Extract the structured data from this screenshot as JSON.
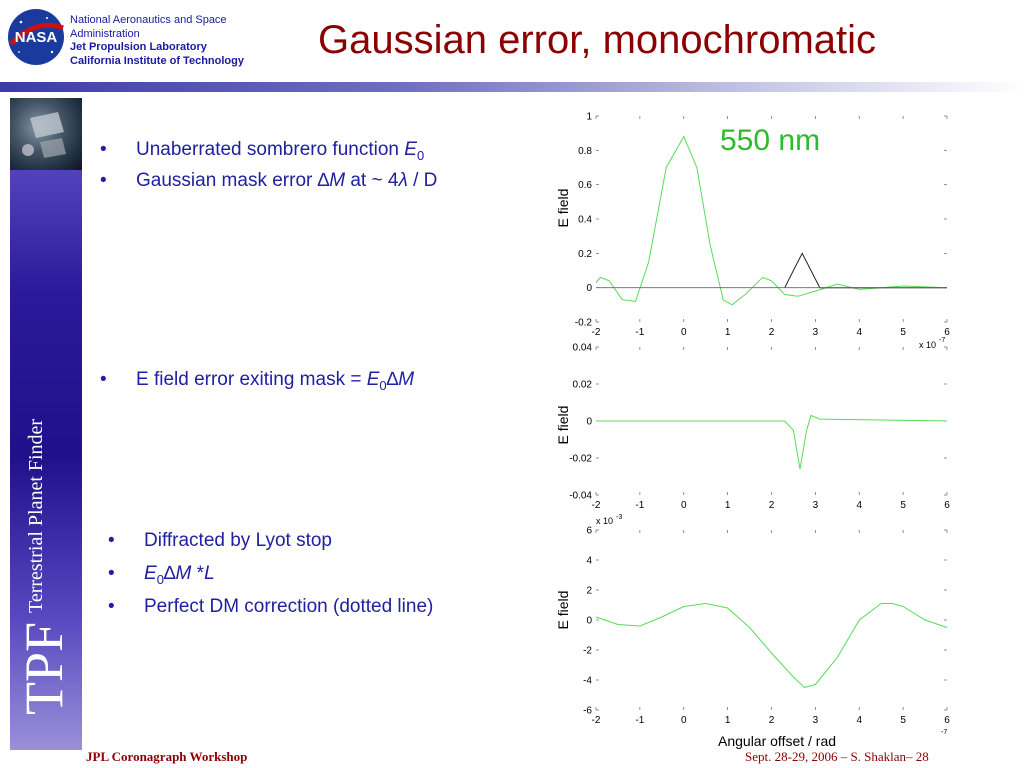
{
  "header": {
    "org_line1": "National Aeronautics and Space",
    "org_line2": "Administration",
    "lab": "Jet Propulsion Laboratory",
    "institute": "California Institute of Technology",
    "logo_text": "NASA"
  },
  "title": "Gaussian error, monochromatic",
  "sidebar": {
    "logo": "TPF",
    "name": "Terrestrial Planet Finder"
  },
  "bullets_group1": [
    {
      "parts": [
        "Unaberrated sombrero function ",
        "E",
        "0"
      ]
    },
    {
      "parts": [
        "Gaussian mask error ",
        "∆",
        "M",
        " at ~ 4",
        "λ",
        " / D"
      ]
    }
  ],
  "bullets_group2": [
    {
      "parts": [
        "E field error exiting mask = ",
        "E",
        "0",
        "∆",
        "M"
      ]
    }
  ],
  "bullets_group3": [
    {
      "parts": [
        "Diffracted by Lyot stop"
      ]
    },
    {
      "parts": [
        "E",
        "0",
        "∆",
        "M",
        " *",
        "L"
      ]
    },
    {
      "parts": [
        "Perfect DM correction (dotted line)"
      ]
    }
  ],
  "wavelength_label": "550 nm",
  "xlabel": "Angular offset / rad",
  "ylabel": "E field",
  "exp_label_top": "x 10",
  "exp_top_sup": "-7",
  "exp_mid_sup": "-3",
  "exp_bottom_sup": "-7",
  "footer": {
    "left": "JPL Coronagraph Workshop",
    "right": "Sept. 28-29, 2006  –   S. Shaklan– 28"
  },
  "colors": {
    "title": "#8b0000",
    "text": "#2020a0",
    "curve": "#55dd55",
    "curve_dark": "#222222"
  },
  "chart_data": [
    {
      "type": "line",
      "x_ticks": [
        "-2",
        "-1",
        "0",
        "1",
        "2",
        "3",
        "4",
        "5",
        "6"
      ],
      "y_ticks": [
        "-0.2",
        "0",
        "0.2",
        "0.4",
        "0.6",
        "0.8",
        "1"
      ],
      "xlim": [
        -2,
        6
      ],
      "ylim": [
        -0.2,
        1
      ],
      "ylabel": "E field",
      "annotation": "550 nm",
      "series": [
        {
          "values": [
            [
              -2,
              0.03
            ],
            [
              -1.9,
              0.06
            ],
            [
              -1.7,
              0.04
            ],
            [
              -1.4,
              -0.07
            ],
            [
              -1.1,
              -0.08
            ],
            [
              -0.8,
              0.15
            ],
            [
              -0.4,
              0.7
            ],
            [
              0,
              0.88
            ],
            [
              0.3,
              0.7
            ],
            [
              0.6,
              0.25
            ],
            [
              0.9,
              -0.07
            ],
            [
              1.1,
              -0.1
            ],
            [
              1.4,
              -0.04
            ],
            [
              1.8,
              0.06
            ],
            [
              2.0,
              0.04
            ],
            [
              2.3,
              -0.04
            ],
            [
              2.6,
              -0.05
            ],
            [
              3.0,
              -0.02
            ],
            [
              3.5,
              0.02
            ],
            [
              4.0,
              -0.01
            ],
            [
              4.5,
              0.0
            ],
            [
              5.0,
              0.01
            ],
            [
              6,
              0.0
            ]
          ]
        },
        {
          "values": [
            [
              2.3,
              0.0
            ],
            [
              2.5,
              0.1
            ],
            [
              2.7,
              0.2
            ],
            [
              2.9,
              0.1
            ],
            [
              3.1,
              0.0
            ],
            [
              6,
              0.0
            ]
          ]
        },
        {
          "values": [
            [
              -2,
              0
            ],
            [
              6,
              0
            ]
          ]
        }
      ]
    },
    {
      "type": "line",
      "x_ticks": [
        "-2",
        "-1",
        "0",
        "1",
        "2",
        "3",
        "4",
        "5",
        "6"
      ],
      "y_ticks": [
        "-0.04",
        "-0.02",
        "0",
        "0.02",
        "0.04"
      ],
      "xlim": [
        -2,
        6
      ],
      "ylim": [
        -0.04,
        0.04
      ],
      "ylabel": "E field",
      "series": [
        {
          "values": [
            [
              -2,
              0
            ],
            [
              2.3,
              0
            ],
            [
              2.5,
              -0.005
            ],
            [
              2.65,
              -0.026
            ],
            [
              2.8,
              -0.005
            ],
            [
              2.9,
              0.003
            ],
            [
              3.1,
              0.001
            ],
            [
              6,
              0
            ]
          ]
        }
      ]
    },
    {
      "type": "line",
      "x_ticks": [
        "-2",
        "-1",
        "0",
        "1",
        "2",
        "3",
        "4",
        "5",
        "6"
      ],
      "y_ticks": [
        "-6",
        "-4",
        "-2",
        "0",
        "2",
        "4",
        "6"
      ],
      "xlim": [
        -2,
        6
      ],
      "ylim": [
        -6,
        6
      ],
      "ylabel": "E field",
      "xlabel": "Angular offset / rad",
      "series": [
        {
          "values": [
            [
              -2,
              0.2
            ],
            [
              -1.5,
              -0.3
            ],
            [
              -1,
              -0.4
            ],
            [
              -0.5,
              0.2
            ],
            [
              0,
              0.9
            ],
            [
              0.5,
              1.1
            ],
            [
              1,
              0.8
            ],
            [
              1.5,
              -0.5
            ],
            [
              2,
              -2.2
            ],
            [
              2.5,
              -3.8
            ],
            [
              2.75,
              -4.5
            ],
            [
              3,
              -4.3
            ],
            [
              3.5,
              -2.5
            ],
            [
              4,
              0
            ],
            [
              4.5,
              1.1
            ],
            [
              4.75,
              1.1
            ],
            [
              5,
              0.9
            ],
            [
              5.5,
              0
            ],
            [
              6,
              -0.5
            ]
          ]
        }
      ]
    }
  ]
}
